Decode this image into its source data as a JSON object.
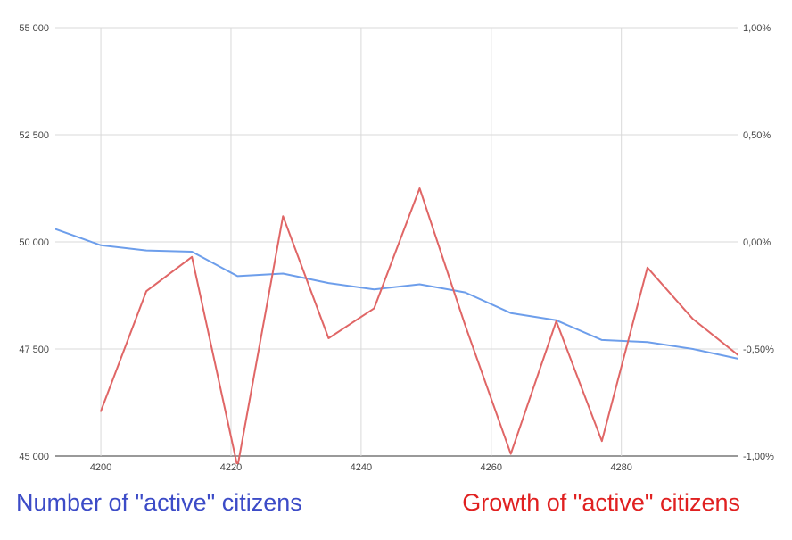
{
  "chart_data": {
    "type": "line",
    "title": "",
    "xlabel": "",
    "grid": true,
    "x_ticks": [
      "4200",
      "4220",
      "4240",
      "4260",
      "4280"
    ],
    "x_tick_values": [
      4200,
      4220,
      4240,
      4260,
      4280
    ],
    "xlim": [
      4193,
      4298
    ],
    "y_left": {
      "ylim": [
        45000,
        55000
      ],
      "ticks": [
        45000,
        47500,
        50000,
        52500,
        55000
      ],
      "tick_labels": [
        "45 000",
        "47 500",
        "50 000",
        "52 500",
        "55 000"
      ]
    },
    "y_right": {
      "ylim": [
        -1.0,
        1.0
      ],
      "ticks": [
        -1.0,
        -0.5,
        0.0,
        0.5,
        1.0
      ],
      "tick_labels": [
        "-1,00%",
        "-0,50%",
        "0,00%",
        "0,50%",
        "1,00%"
      ]
    },
    "series": [
      {
        "name": "Number of \"active\" citizens",
        "axis": "left",
        "color": "#6d9eeb",
        "x": [
          4193,
          4200,
          4207,
          4214,
          4221,
          4228,
          4235,
          4242,
          4249,
          4256,
          4263,
          4270,
          4277,
          4284,
          4291,
          4298
        ],
        "y": [
          50300,
          49920,
          49800,
          49770,
          49200,
          49260,
          49040,
          48890,
          49010,
          48820,
          48340,
          48170,
          47710,
          47660,
          47500,
          47270
        ]
      },
      {
        "name": "Growth of \"active\" citizens",
        "axis": "right",
        "color": "#e06666",
        "x": [
          4200,
          4207,
          4214,
          4221,
          4228,
          4235,
          4242,
          4249,
          4256,
          4263,
          4270,
          4277,
          4284,
          4291,
          4298
        ],
        "y": [
          -0.79,
          -0.23,
          -0.07,
          -1.05,
          0.12,
          -0.45,
          -0.31,
          0.25,
          -0.39,
          -0.99,
          -0.37,
          -0.93,
          -0.12,
          -0.36,
          -0.53
        ]
      }
    ]
  },
  "legend": {
    "left": {
      "text": "Number of \"active\" citizens",
      "color": "#3c4bc7"
    },
    "right": {
      "text": "Growth of \"active\" citizens",
      "color": "#e02020"
    }
  }
}
